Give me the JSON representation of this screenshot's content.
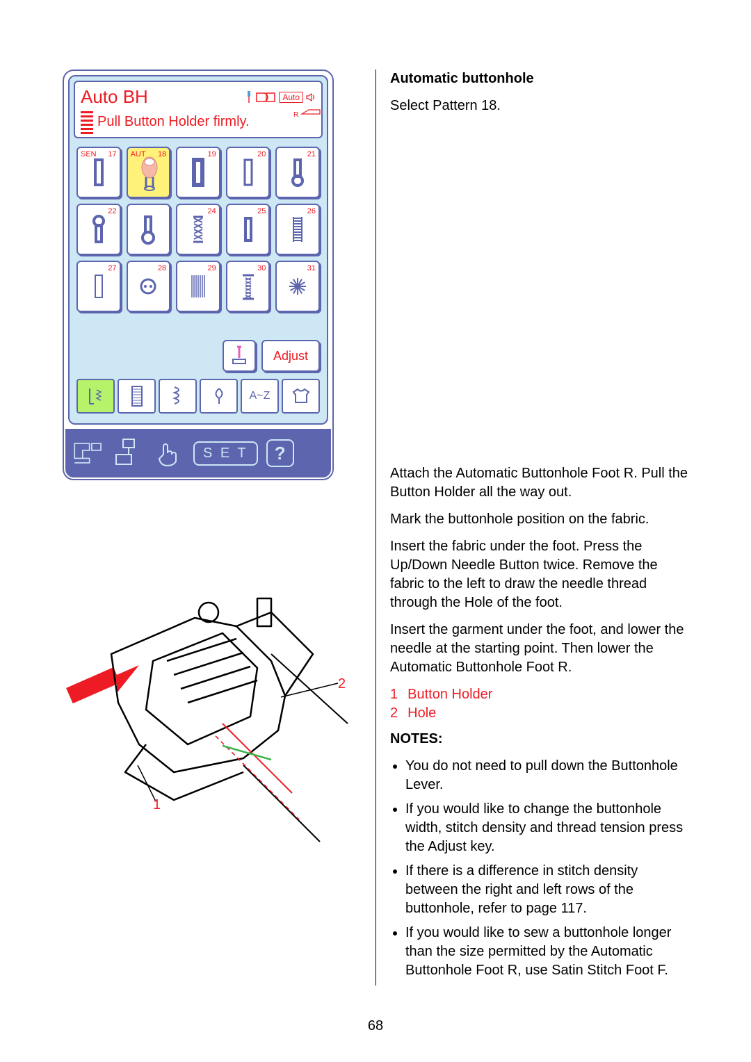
{
  "page_number": "68",
  "lcd": {
    "title": "Auto BH",
    "auto_label": "Auto",
    "r_label": "R",
    "subtitle": "Pull Button Holder firmly.",
    "adjust_label": "Adjust",
    "az_label": "A~Z",
    "set_label": "S E T",
    "help_label": "?",
    "colors": {
      "frame": "#5c65ae",
      "panel_bg": "#cde7f5",
      "highlight": "#fff27a",
      "active_mode": "#b6f26a",
      "red": "#ed1c24"
    },
    "patterns": [
      {
        "prefix": "SEN",
        "num": "17",
        "glyph": "bh-rect"
      },
      {
        "prefix": "AUT",
        "num": "18",
        "glyph": "bh-finger",
        "selected": true
      },
      {
        "prefix": "",
        "num": "19",
        "glyph": "bh-rect-bold"
      },
      {
        "prefix": "",
        "num": "20",
        "glyph": "bh-rect-open"
      },
      {
        "prefix": "",
        "num": "21",
        "glyph": "bh-keyhole-down"
      },
      {
        "prefix": "",
        "num": "22",
        "glyph": "bh-keyhole-up"
      },
      {
        "prefix": "",
        "num": "",
        "glyph": "bh-keyhole-down2"
      },
      {
        "prefix": "",
        "num": "24",
        "glyph": "bh-cross"
      },
      {
        "prefix": "",
        "num": "25",
        "glyph": "bh-dense"
      },
      {
        "prefix": "",
        "num": "26",
        "glyph": "bh-ladder"
      },
      {
        "prefix": "",
        "num": "27",
        "glyph": "bh-outline"
      },
      {
        "prefix": "",
        "num": "28",
        "glyph": "bh-eyelet"
      },
      {
        "prefix": "",
        "num": "29",
        "glyph": "bh-darning"
      },
      {
        "prefix": "",
        "num": "30",
        "glyph": "bh-bartack"
      },
      {
        "prefix": "",
        "num": "31",
        "glyph": "bh-flower"
      }
    ]
  },
  "right": {
    "heading": "Automatic buttonhole",
    "select_line": "Select Pattern 18.",
    "p1": "Attach the Automatic Buttonhole Foot R. Pull the Button Holder all the way out.",
    "p2": "Mark the buttonhole position on the fabric.",
    "p3": "Insert the fabric under the foot. Press the Up/Down Needle Button twice. Remove the fabric to the left to draw the needle thread through the Hole of the foot.",
    "p4": "Insert the garment under the foot, and lower the needle at the starting point. Then lower the Automatic Buttonhole Foot R.",
    "legend": [
      {
        "n": "1",
        "t": "Button Holder"
      },
      {
        "n": "2",
        "t": "Hole"
      }
    ],
    "notes_heading": "NOTES:",
    "notes": [
      "You do not need to pull down the Buttonhole Lever.",
      "If you would like to change the buttonhole width, stitch density and thread tension press the Adjust key.",
      "If there is a difference in stitch density between the right and left rows of the buttonhole, refer to page 117.",
      "If you would like to sew a buttonhole longer than the size permitted by the Automatic Buttonhole Foot R, use Satin Stitch Foot F."
    ]
  },
  "diagram": {
    "callout1": "1",
    "callout2": "2"
  }
}
